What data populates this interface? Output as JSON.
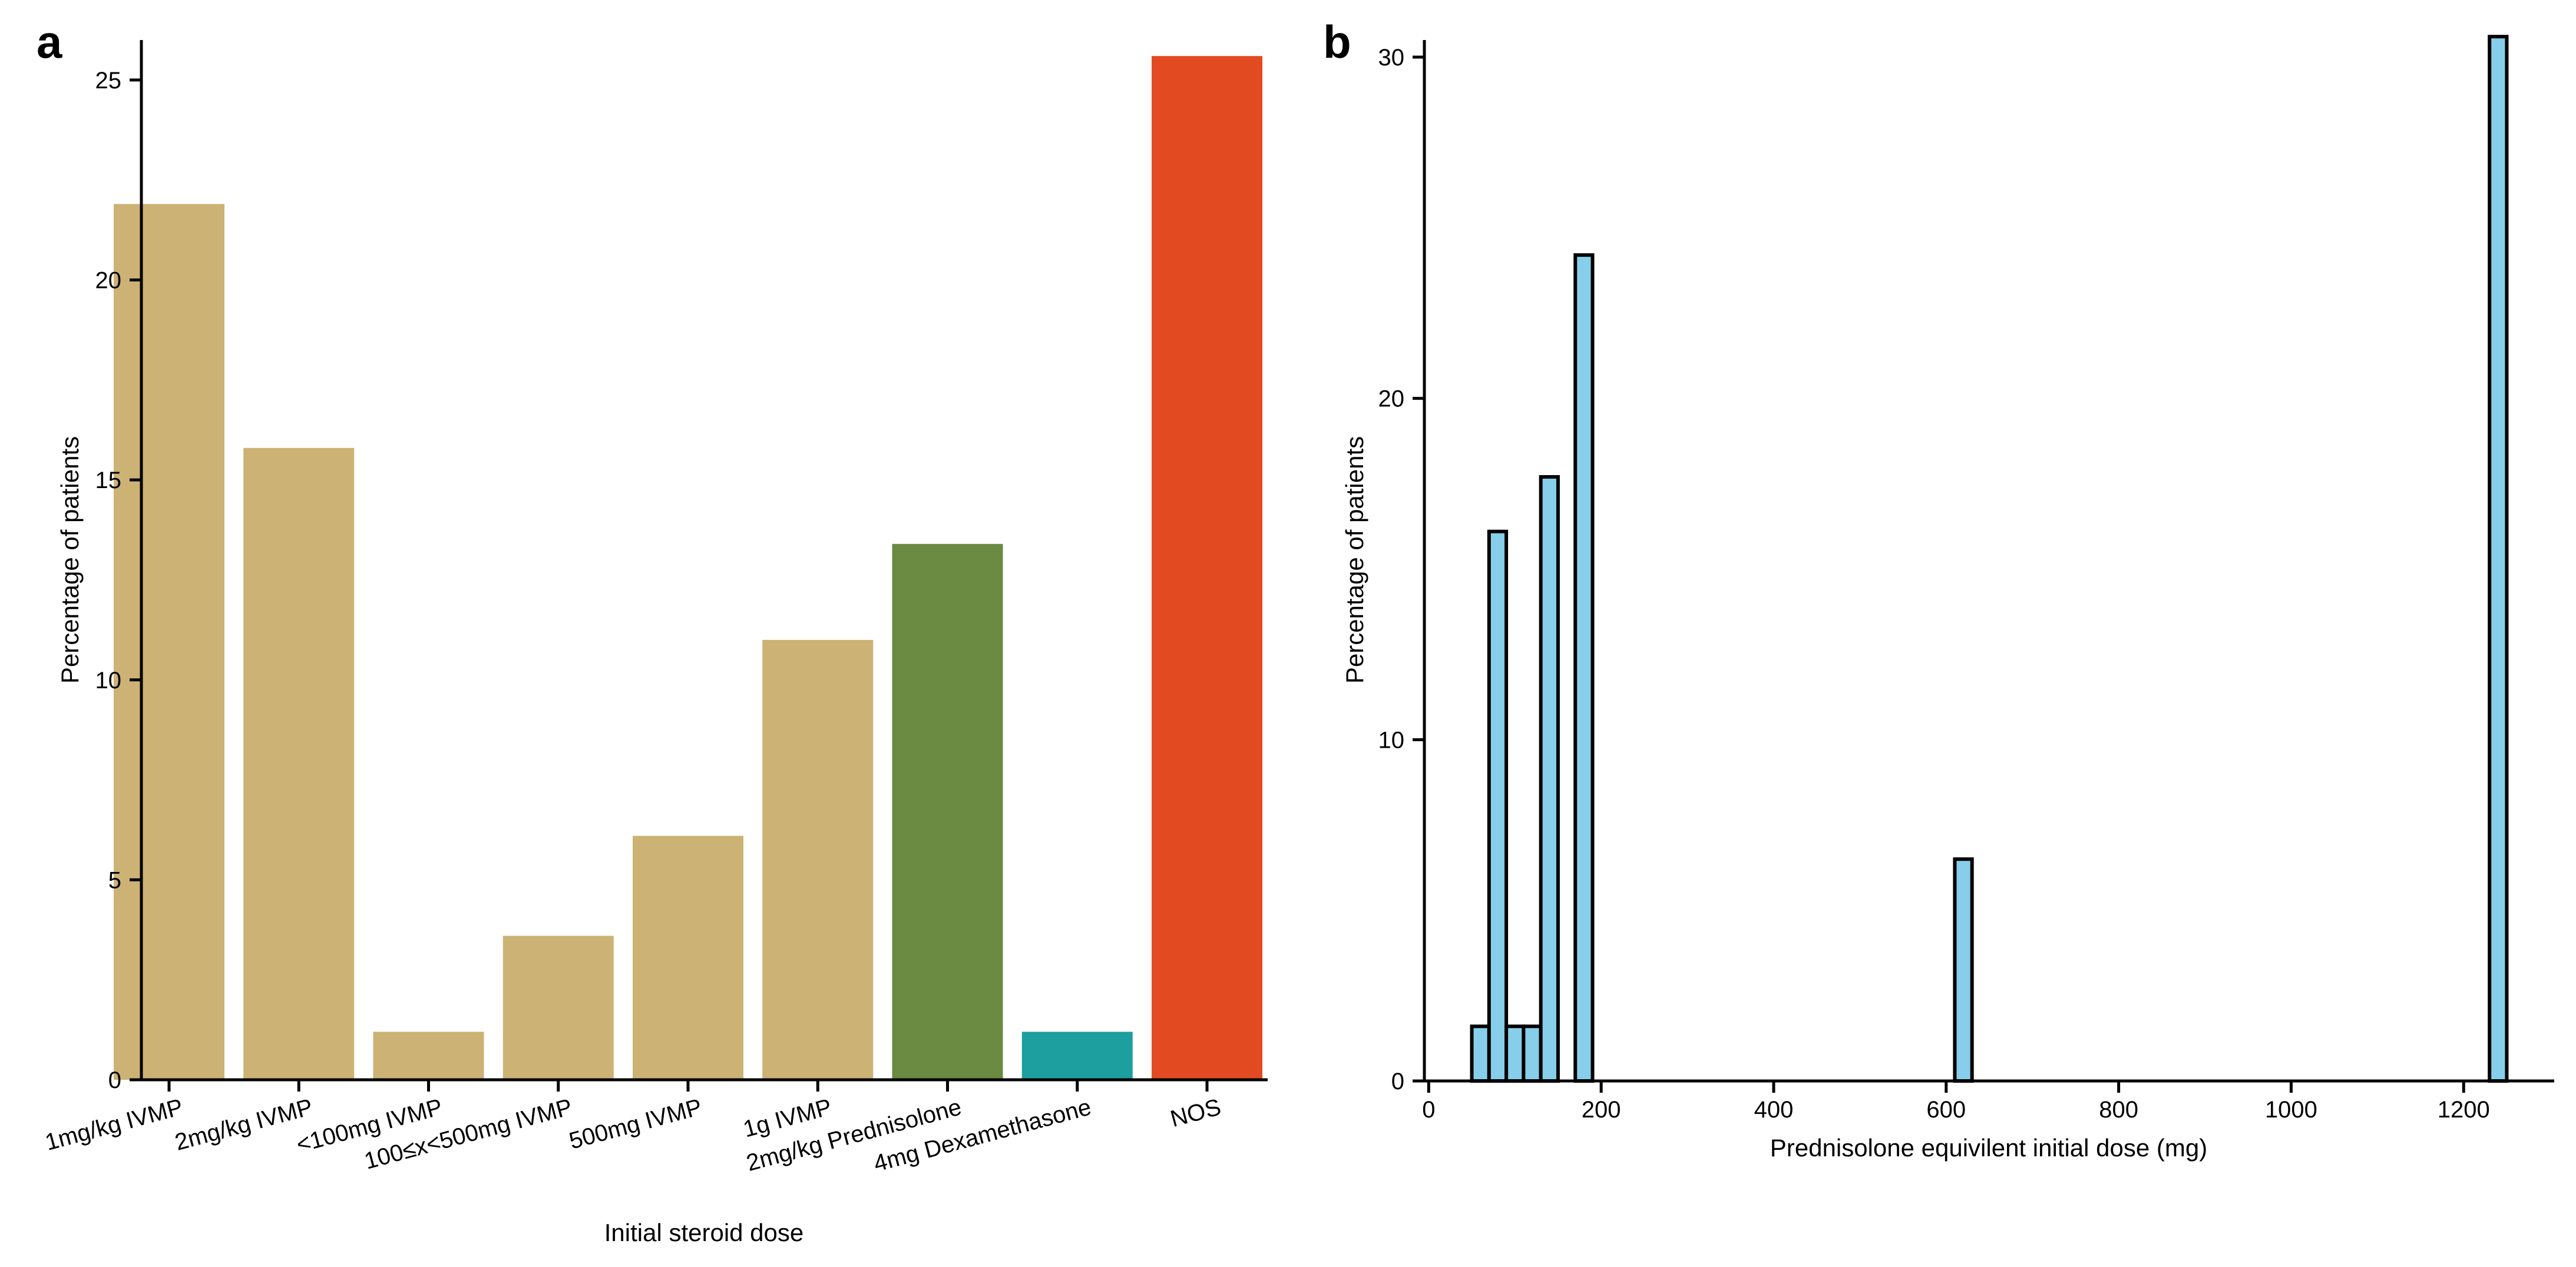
{
  "panels": {
    "a": {
      "letter": "a"
    },
    "b": {
      "letter": "b"
    }
  },
  "chart_data": [
    {
      "id": "a",
      "type": "bar",
      "title": "",
      "xlabel": "Initial steroid dose",
      "ylabel": "Percentage of patients",
      "ylim": [
        0,
        26
      ],
      "yticks": [
        0,
        5,
        10,
        15,
        20,
        25
      ],
      "categories": [
        "1mg/kg IVMP",
        "2mg/kg IVMP",
        "<100mg IVMP",
        "100≤x<500mg IVMP",
        "500mg IVMP",
        "1g IVMP",
        "2mg/kg Prednisolone",
        "4mg Dexamethasone",
        "NOS"
      ],
      "values": [
        21.9,
        15.8,
        1.2,
        3.6,
        6.1,
        11.0,
        13.4,
        1.2,
        25.6
      ],
      "colors": [
        "#ccb274",
        "#ccb274",
        "#ccb274",
        "#ccb274",
        "#ccb274",
        "#ccb274",
        "#6b8a42",
        "#1d9e9f",
        "#e24a22"
      ],
      "grid": false
    },
    {
      "id": "b",
      "type": "bar",
      "title": "",
      "xlabel": "Prednisolone equivilent initial dose (mg)",
      "ylabel": "Percentage of patients",
      "xlim": [
        -5,
        1305
      ],
      "ylim": [
        0,
        30.5
      ],
      "xticks": [
        0,
        200,
        400,
        600,
        800,
        1000,
        1200
      ],
      "yticks": [
        0,
        10,
        20,
        30
      ],
      "bin_width": 20,
      "bins": [
        {
          "x": 60,
          "value": 1.6
        },
        {
          "x": 80,
          "value": 16.1
        },
        {
          "x": 100,
          "value": 1.6
        },
        {
          "x": 120,
          "value": 1.6
        },
        {
          "x": 140,
          "value": 17.7
        },
        {
          "x": 180,
          "value": 24.2
        },
        {
          "x": 620,
          "value": 6.5
        },
        {
          "x": 1240,
          "value": 30.6
        }
      ],
      "bar_color": "#87ceeb",
      "edge_color": "#000000",
      "grid": false
    }
  ]
}
